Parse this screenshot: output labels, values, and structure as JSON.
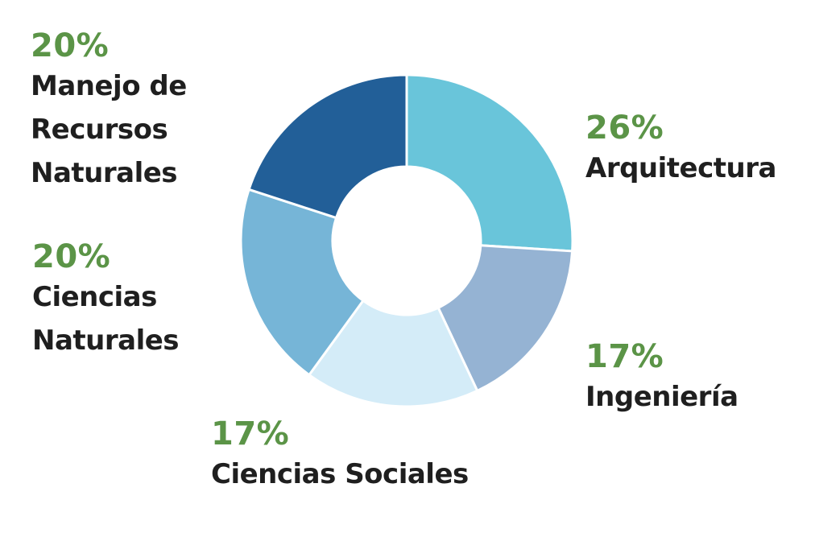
{
  "chart_data": {
    "type": "pie",
    "categories": [
      "Arquitectura",
      "Ingeniería",
      "Ciencias Sociales",
      "Ciencias Naturales",
      "Manejo de Recursos Naturales"
    ],
    "values": [
      26,
      17,
      17,
      20,
      20
    ],
    "value_labels": [
      "26%",
      "17%",
      "17%",
      "20%",
      "20%"
    ],
    "colors": [
      "#69c5da",
      "#95b3d3",
      "#d4ecf8",
      "#76b5d7",
      "#225f98"
    ],
    "label_color": "#5b9447",
    "name_color": "#1f1f1f",
    "donut": true
  },
  "labels": {
    "arquitectura": {
      "pct": "26%",
      "name": "Arquitectura"
    },
    "ingenieria": {
      "pct": "17%",
      "name": "Ingeniería"
    },
    "ciencias_sociales": {
      "pct": "17%",
      "name": "Ciencias Sociales"
    },
    "ciencias_naturales": {
      "pct": "20%",
      "name": "Ciencias Naturales"
    },
    "manejo": {
      "pct": "20%",
      "name": "Manejo de Recursos Naturales"
    }
  }
}
